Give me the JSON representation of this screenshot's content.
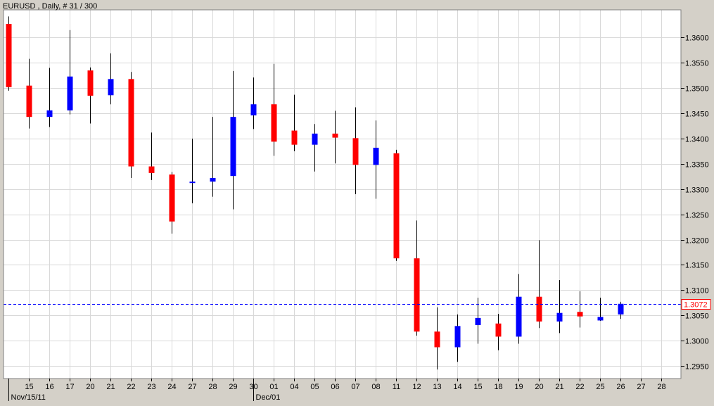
{
  "header": {
    "title": "EURUSD , Daily, # 31 / 300"
  },
  "colors": {
    "background": "#d4d0c8",
    "plot_background": "#ffffff",
    "grid": "#d8d8d8",
    "bull": "#0000ff",
    "bear": "#ff0000",
    "wick": "#000000",
    "current_price_line": "#0000ff",
    "current_price_label": "#ff0000"
  },
  "chart_data": {
    "type": "candlestick",
    "symbol": "EURUSD",
    "timeframe": "Daily",
    "grid": true,
    "y_axis_position": "right",
    "ylim": [
      1.2925,
      1.3655
    ],
    "y_ticks": [
      "1.3600",
      "1.3550",
      "1.3500",
      "1.3450",
      "1.3400",
      "1.3350",
      "1.3300",
      "1.3250",
      "1.3200",
      "1.3150",
      "1.3100",
      "1.3050",
      "1.3000",
      "1.2950"
    ],
    "x_tick_labels": [
      "15",
      "16",
      "17",
      "20",
      "21",
      "22",
      "23",
      "24",
      "27",
      "28",
      "29",
      "30",
      "01",
      "04",
      "05",
      "06",
      "07",
      "08",
      "11",
      "12",
      "13",
      "14",
      "15",
      "18",
      "19",
      "20",
      "21",
      "22",
      "25",
      "26",
      "27",
      "28"
    ],
    "date_labels": [
      {
        "text": "Nov/15/11",
        "index": 0
      },
      {
        "text": "Dec/01",
        "index": 12
      }
    ],
    "current_price": "1.3072",
    "candles": [
      {
        "date": "Nov/14/11",
        "open": 1.3627,
        "high": 1.3642,
        "low": 1.3495,
        "close": 1.3502
      },
      {
        "date": "Nov/15/11",
        "open": 1.3505,
        "high": 1.3558,
        "low": 1.342,
        "close": 1.3443
      },
      {
        "date": "Nov/16/11",
        "open": 1.3443,
        "high": 1.354,
        "low": 1.3423,
        "close": 1.3456
      },
      {
        "date": "Nov/17/11",
        "open": 1.3456,
        "high": 1.3615,
        "low": 1.3448,
        "close": 1.3523
      },
      {
        "date": "Nov/20/11",
        "open": 1.3535,
        "high": 1.3541,
        "low": 1.343,
        "close": 1.3485
      },
      {
        "date": "Nov/21/11",
        "open": 1.3486,
        "high": 1.3569,
        "low": 1.3468,
        "close": 1.3518
      },
      {
        "date": "Nov/22/11",
        "open": 1.3518,
        "high": 1.3532,
        "low": 1.3322,
        "close": 1.3345
      },
      {
        "date": "Nov/23/11",
        "open": 1.3345,
        "high": 1.3412,
        "low": 1.3318,
        "close": 1.3332
      },
      {
        "date": "Nov/24/11",
        "open": 1.3329,
        "high": 1.3334,
        "low": 1.3212,
        "close": 1.3236
      },
      {
        "date": "Nov/27/11",
        "open": 1.3312,
        "high": 1.34,
        "low": 1.3272,
        "close": 1.3315
      },
      {
        "date": "Nov/28/11",
        "open": 1.3315,
        "high": 1.3443,
        "low": 1.3285,
        "close": 1.3322
      },
      {
        "date": "Nov/29/11",
        "open": 1.3326,
        "high": 1.3534,
        "low": 1.326,
        "close": 1.3443
      },
      {
        "date": "Nov/30/11",
        "open": 1.3446,
        "high": 1.3521,
        "low": 1.3419,
        "close": 1.3468
      },
      {
        "date": "Dec/01/11",
        "open": 1.3468,
        "high": 1.3548,
        "low": 1.3366,
        "close": 1.3394
      },
      {
        "date": "Dec/04/11",
        "open": 1.3416,
        "high": 1.3487,
        "low": 1.3375,
        "close": 1.3388
      },
      {
        "date": "Dec/05/11",
        "open": 1.3388,
        "high": 1.3429,
        "low": 1.3335,
        "close": 1.341
      },
      {
        "date": "Dec/06/11",
        "open": 1.341,
        "high": 1.3455,
        "low": 1.3351,
        "close": 1.3402
      },
      {
        "date": "Dec/07/11",
        "open": 1.3401,
        "high": 1.3462,
        "low": 1.329,
        "close": 1.3348
      },
      {
        "date": "Dec/08/11",
        "open": 1.3348,
        "high": 1.3436,
        "low": 1.3281,
        "close": 1.3382
      },
      {
        "date": "Dec/11/11",
        "open": 1.3371,
        "high": 1.3378,
        "low": 1.3158,
        "close": 1.3163
      },
      {
        "date": "Dec/12/11",
        "open": 1.3163,
        "high": 1.3238,
        "low": 1.301,
        "close": 1.3018
      },
      {
        "date": "Dec/13/11",
        "open": 1.3018,
        "high": 1.3066,
        "low": 1.2943,
        "close": 1.2987
      },
      {
        "date": "Dec/14/11",
        "open": 1.2987,
        "high": 1.3052,
        "low": 1.2958,
        "close": 1.3029
      },
      {
        "date": "Dec/15/11",
        "open": 1.3031,
        "high": 1.3085,
        "low": 1.2994,
        "close": 1.3045
      },
      {
        "date": "Dec/18/11",
        "open": 1.3034,
        "high": 1.3053,
        "low": 1.2981,
        "close": 1.3008
      },
      {
        "date": "Dec/19/11",
        "open": 1.3008,
        "high": 1.3132,
        "low": 1.2994,
        "close": 1.3087
      },
      {
        "date": "Dec/20/11",
        "open": 1.3087,
        "high": 1.3199,
        "low": 1.3025,
        "close": 1.3038
      },
      {
        "date": "Dec/21/11",
        "open": 1.3038,
        "high": 1.312,
        "low": 1.3015,
        "close": 1.3055
      },
      {
        "date": "Dec/22/11",
        "open": 1.3057,
        "high": 1.3098,
        "low": 1.3026,
        "close": 1.3048
      },
      {
        "date": "Dec/25/11",
        "open": 1.304,
        "high": 1.3085,
        "low": 1.3039,
        "close": 1.3047
      },
      {
        "date": "Dec/26/11",
        "open": 1.3052,
        "high": 1.3077,
        "low": 1.3043,
        "close": 1.3073
      }
    ]
  }
}
